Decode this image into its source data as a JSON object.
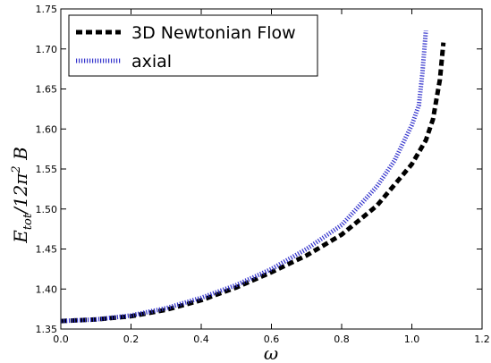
{
  "chart_data": {
    "type": "line",
    "xlabel": "ω",
    "ylabel_main": "E",
    "ylabel_sub": "tot",
    "ylabel_rest": "/12π",
    "ylabel_sup": "2",
    "ylabel_end": " B",
    "xlim": [
      0.0,
      1.2
    ],
    "ylim": [
      1.35,
      1.75
    ],
    "x_ticks": [
      0.0,
      0.2,
      0.4,
      0.6,
      0.8,
      1.0,
      1.2
    ],
    "x_tick_labels": [
      "0.0",
      "0.2",
      "0.4",
      "0.6",
      "0.8",
      "1.0",
      "1.2"
    ],
    "y_ticks": [
      1.35,
      1.4,
      1.45,
      1.5,
      1.55,
      1.6,
      1.65,
      1.7,
      1.75
    ],
    "y_tick_labels": [
      "1.35",
      "1.40",
      "1.45",
      "1.50",
      "1.55",
      "1.60",
      "1.65",
      "1.70",
      "1.75"
    ],
    "grid": false,
    "legend_position": "top-left",
    "series": [
      {
        "name": "3D Newtonian Flow",
        "color": "#000000",
        "style": "dashed",
        "x": [
          0.0,
          0.1,
          0.2,
          0.3,
          0.4,
          0.5,
          0.6,
          0.7,
          0.8,
          0.9,
          1.0,
          1.04,
          1.06,
          1.08,
          1.09
        ],
        "y": [
          1.36,
          1.362,
          1.366,
          1.374,
          1.386,
          1.402,
          1.421,
          1.442,
          1.468,
          1.504,
          1.556,
          1.586,
          1.612,
          1.662,
          1.708
        ]
      },
      {
        "name": "axial",
        "color": "#3333cc",
        "style": "dotted",
        "x": [
          0.0,
          0.1,
          0.2,
          0.3,
          0.4,
          0.5,
          0.6,
          0.7,
          0.8,
          0.9,
          0.95,
          1.0,
          1.02,
          1.03,
          1.04
        ],
        "y": [
          1.36,
          1.362,
          1.367,
          1.376,
          1.389,
          1.405,
          1.425,
          1.45,
          1.48,
          1.528,
          1.56,
          1.605,
          1.63,
          1.67,
          1.723
        ]
      }
    ]
  }
}
